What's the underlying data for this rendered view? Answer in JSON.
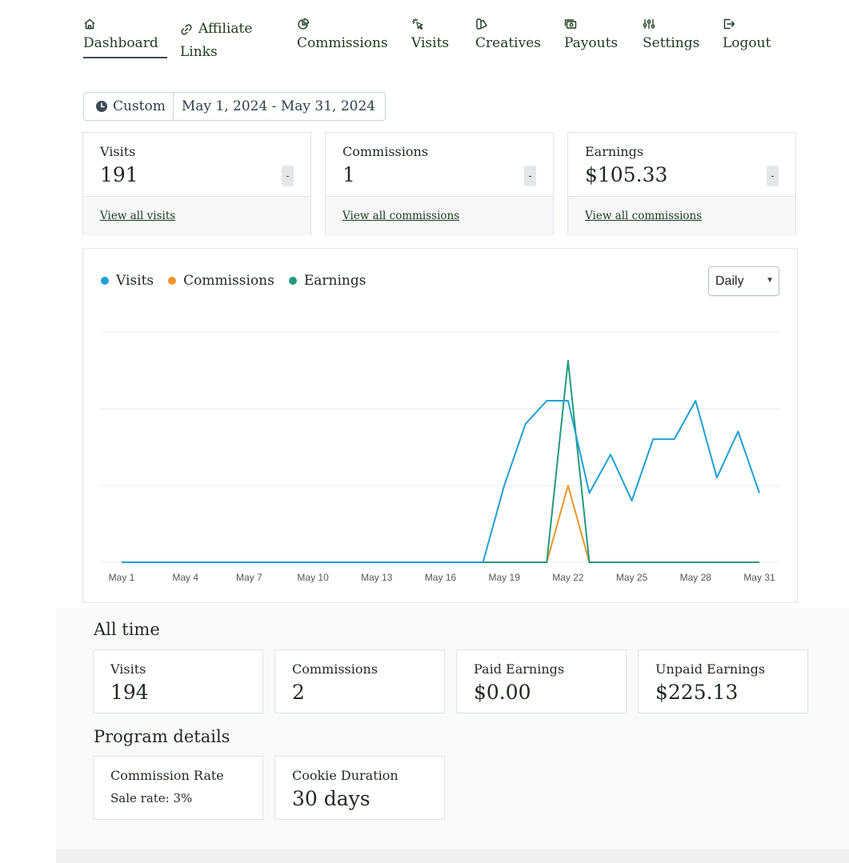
{
  "nav": {
    "items": [
      {
        "label": "Dashboard",
        "icon": "home-icon"
      },
      {
        "label": "Affiliate Links",
        "icon": "link-icon"
      },
      {
        "label": "Commissions",
        "icon": "pie-chart-icon"
      },
      {
        "label": "Visits",
        "icon": "cursor-click-icon"
      },
      {
        "label": "Creatives",
        "icon": "creatives-icon"
      },
      {
        "label": "Payouts",
        "icon": "cash-icon"
      },
      {
        "label": "Settings",
        "icon": "sliders-icon"
      },
      {
        "label": "Logout",
        "icon": "logout-icon"
      }
    ],
    "affiliate_line1": "Affiliate",
    "affiliate_line2": "Links",
    "active": "Dashboard"
  },
  "date_range": {
    "preset": "Custom",
    "range": "May 1, 2024 - May 31, 2024"
  },
  "stats": [
    {
      "label": "Visits",
      "value": "191",
      "badge": "-",
      "link": "View all visits"
    },
    {
      "label": "Commissions",
      "value": "1",
      "badge": "-",
      "link": "View all commissions"
    },
    {
      "label": "Earnings",
      "value": "$105.33",
      "badge": "-",
      "link": "View all commissions"
    }
  ],
  "chart_controls": {
    "interval": "Daily"
  },
  "chart_data": {
    "type": "line",
    "x": [
      "May 1",
      "May 2",
      "May 3",
      "May 4",
      "May 5",
      "May 6",
      "May 7",
      "May 8",
      "May 9",
      "May 10",
      "May 11",
      "May 12",
      "May 13",
      "May 14",
      "May 15",
      "May 16",
      "May 17",
      "May 18",
      "May 19",
      "May 20",
      "May 21",
      "May 22",
      "May 23",
      "May 24",
      "May 25",
      "May 26",
      "May 27",
      "May 28",
      "May 29",
      "May 30",
      "May 31"
    ],
    "x_tick_labels": [
      "May 1",
      "May 4",
      "May 7",
      "May 10",
      "May 13",
      "May 16",
      "May 19",
      "May 22",
      "May 25",
      "May 28",
      "May 31"
    ],
    "series": [
      {
        "name": "Visits",
        "color": "#1fa0d6",
        "values": [
          0,
          0,
          0,
          0,
          0,
          0,
          0,
          0,
          0,
          0,
          0,
          0,
          0,
          0,
          0,
          0,
          0,
          0,
          10,
          18,
          21,
          21,
          9,
          14,
          8,
          16,
          16,
          21,
          11,
          17,
          9
        ]
      },
      {
        "name": "Commissions",
        "color": "#f0952a",
        "values": [
          0,
          0,
          0,
          0,
          0,
          0,
          0,
          0,
          0,
          0,
          0,
          0,
          0,
          0,
          0,
          0,
          0,
          0,
          0,
          0,
          0,
          1,
          0,
          0,
          0,
          0,
          0,
          0,
          0,
          0,
          0
        ]
      },
      {
        "name": "Earnings",
        "color": "#239a7e",
        "values": [
          0,
          0,
          0,
          0,
          0,
          0,
          0,
          0,
          0,
          0,
          0,
          0,
          0,
          0,
          0,
          0,
          0,
          0,
          0,
          0,
          0,
          105.33,
          0,
          0,
          0,
          0,
          0,
          0,
          0,
          0,
          0
        ]
      }
    ],
    "grid": true,
    "legend": "top-left"
  },
  "all_time": {
    "title": "All time",
    "cards": [
      {
        "label": "Visits",
        "value": "194"
      },
      {
        "label": "Commissions",
        "value": "2"
      },
      {
        "label": "Paid Earnings",
        "value": "$0.00"
      },
      {
        "label": "Unpaid Earnings",
        "value": "$225.13"
      }
    ]
  },
  "program": {
    "title": "Program details",
    "cards": [
      {
        "label": "Commission Rate",
        "value": "Sale rate: 3%"
      },
      {
        "label": "Cookie Duration",
        "value": "30 days"
      }
    ]
  }
}
